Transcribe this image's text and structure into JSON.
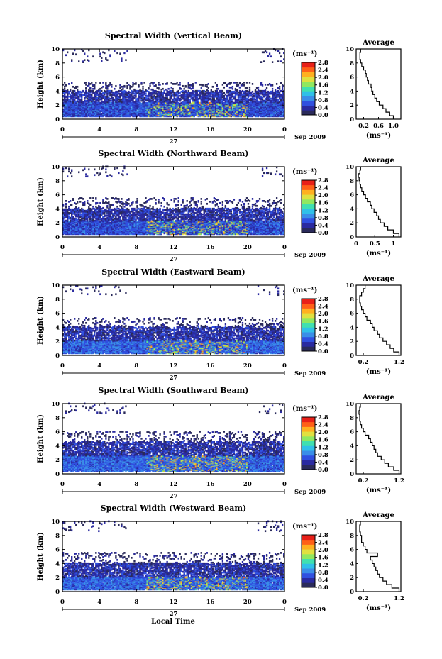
{
  "colorbar": {
    "unit": "(ms⁻¹)",
    "ticks": [
      "2.8",
      "2.4",
      "2.0",
      "1.6",
      "1.2",
      "0.8",
      "0.4",
      "0.0"
    ],
    "range": [
      0.0,
      2.8
    ],
    "colors": [
      "#2a2a5a",
      "#2a2aa0",
      "#3050e0",
      "#3a8ee8",
      "#30c0e8",
      "#40e0b0",
      "#90e860",
      "#e0e040",
      "#ffb020",
      "#ff6018",
      "#e82018"
    ]
  },
  "shared": {
    "y_label": "Height (km)",
    "x_ticks": [
      "0",
      "4",
      "8",
      "12",
      "16",
      "20",
      "0"
    ],
    "x_tick_values": [
      0,
      4,
      8,
      12,
      16,
      20,
      24
    ],
    "y_ticks": [
      "0",
      "2",
      "4",
      "6",
      "8",
      "10"
    ],
    "date_label": "27",
    "month_label": "Sep 2009",
    "x_title": "Local Time",
    "avg_title": "Average",
    "avg_xlabel": "(ms⁻¹)"
  },
  "chart_data": [
    {
      "type": "heatmap",
      "title": "Spectral Width (Vertical Beam)",
      "xlabel": "",
      "ylabel": "Height (km)",
      "xlim": [
        0,
        24
      ],
      "ylim": [
        0,
        10
      ],
      "z_unit": "ms⁻¹",
      "z_range": [
        0.0,
        2.8
      ],
      "layers": [
        {
          "from_km": 0.3,
          "to_km": 2.3,
          "typical_width": 0.6,
          "coverage": "continuous 0-24 h"
        },
        {
          "from_km": 2.3,
          "to_km": 4.0,
          "typical_width": 0.4,
          "coverage": "patchy 0-24 h"
        },
        {
          "from_km": 4.0,
          "to_km": 5.2,
          "typical_width": 0.2,
          "coverage": "sparse"
        },
        {
          "from_km": 8.0,
          "to_km": 10.0,
          "typical_width": 0.2,
          "coverage": "isolated echoes near 0-3 h and 22-24 h"
        }
      ],
      "average_profile": {
        "title": "Average",
        "xlabel": "(ms⁻¹)",
        "ylabel": "",
        "x_ticks": [
          "0.2",
          "0.6",
          "1.0"
        ],
        "x_tick_values": [
          0.2,
          0.6,
          1.0
        ],
        "xlim": [
          0.0,
          1.2
        ],
        "height": [
          0.0,
          0.5,
          1.0,
          1.5,
          2.0,
          2.5,
          3.0,
          3.5,
          4.0,
          4.5,
          5.0,
          5.5,
          6.0,
          6.5,
          7.0,
          7.5,
          8.0,
          8.5,
          9.0,
          9.5
        ],
        "width": [
          1.0,
          0.9,
          0.8,
          0.72,
          0.62,
          0.55,
          0.5,
          0.45,
          0.42,
          0.4,
          0.33,
          0.3,
          0.27,
          0.25,
          0.2,
          0.15,
          0.12,
          0.1,
          0.1,
          0.12
        ]
      }
    },
    {
      "type": "heatmap",
      "title": "Spectral Width (Northward Beam)",
      "xlabel": "",
      "ylabel": "Height (km)",
      "xlim": [
        0,
        24
      ],
      "ylim": [
        0,
        10
      ],
      "z_unit": "ms⁻¹",
      "z_range": [
        0.0,
        2.8
      ],
      "layers": [
        {
          "from_km": 0.3,
          "to_km": 2.2,
          "typical_width": 0.6,
          "coverage": "continuous 0-24 h"
        },
        {
          "from_km": 2.2,
          "to_km": 4.0,
          "typical_width": 0.4,
          "coverage": "patchy 0-24 h"
        },
        {
          "from_km": 4.0,
          "to_km": 5.5,
          "typical_width": 0.2,
          "coverage": "sparse"
        },
        {
          "from_km": 8.5,
          "to_km": 10.0,
          "typical_width": 0.2,
          "coverage": "isolated echoes near 0-7 h and 21-23 h"
        }
      ],
      "average_profile": {
        "title": "Average",
        "xlabel": "(ms⁻¹)",
        "ylabel": "",
        "x_ticks": [
          "0",
          "0.5",
          "1"
        ],
        "x_tick_values": [
          0,
          0.5,
          1.0
        ],
        "xlim": [
          0.0,
          1.2
        ],
        "height": [
          0.0,
          0.5,
          1.0,
          1.5,
          2.0,
          2.5,
          3.0,
          3.5,
          4.0,
          4.5,
          5.0,
          5.5,
          6.0,
          6.5,
          7.0,
          7.5,
          8.0,
          8.5,
          9.0,
          9.5
        ],
        "width": [
          1.15,
          1.0,
          0.85,
          0.75,
          0.65,
          0.6,
          0.55,
          0.48,
          0.42,
          0.38,
          0.3,
          0.25,
          0.2,
          0.15,
          0.12,
          0.1,
          0.08,
          0.06,
          0.1,
          0.12
        ]
      }
    },
    {
      "type": "heatmap",
      "title": "Spectral Width (Eastward Beam)",
      "xlabel": "",
      "ylabel": "Height (km)",
      "xlim": [
        0,
        24
      ],
      "ylim": [
        0,
        10
      ],
      "z_unit": "ms⁻¹",
      "z_range": [
        0.0,
        2.8
      ],
      "layers": [
        {
          "from_km": 0.2,
          "to_km": 2.0,
          "typical_width": 0.7,
          "coverage": "continuous 0-24 h"
        },
        {
          "from_km": 2.0,
          "to_km": 4.0,
          "typical_width": 0.4,
          "coverage": "patchy 0-24 h"
        },
        {
          "from_km": 4.0,
          "to_km": 5.3,
          "typical_width": 0.2,
          "coverage": "sparse"
        },
        {
          "from_km": 8.5,
          "to_km": 10.0,
          "typical_width": 0.2,
          "coverage": "isolated echoes near 0-7 h"
        }
      ],
      "average_profile": {
        "title": "Average",
        "xlabel": "(ms⁻¹)",
        "ylabel": "",
        "x_ticks": [
          "0.2",
          "1.2"
        ],
        "x_tick_values": [
          0.2,
          1.2
        ],
        "xlim": [
          0.0,
          1.25
        ],
        "height": [
          0.0,
          0.5,
          1.0,
          1.5,
          2.0,
          2.5,
          3.0,
          3.5,
          4.0,
          4.5,
          5.0,
          5.5,
          6.0,
          6.5,
          7.0,
          7.5,
          8.0,
          8.5,
          9.0,
          9.5
        ],
        "width": [
          1.2,
          1.05,
          0.95,
          0.85,
          0.75,
          0.65,
          0.6,
          0.5,
          0.45,
          0.4,
          0.3,
          0.25,
          0.2,
          0.15,
          0.12,
          0.1,
          0.1,
          0.15,
          0.2,
          0.25
        ]
      }
    },
    {
      "type": "heatmap",
      "title": "Spectral Width (Southward Beam)",
      "xlabel": "",
      "ylabel": "Height (km)",
      "xlim": [
        0,
        24
      ],
      "ylim": [
        0,
        10
      ],
      "z_unit": "ms⁻¹",
      "z_range": [
        0.0,
        2.8
      ],
      "layers": [
        {
          "from_km": 0.3,
          "to_km": 2.5,
          "typical_width": 0.7,
          "coverage": "continuous 0-24 h"
        },
        {
          "from_km": 2.5,
          "to_km": 4.5,
          "typical_width": 0.4,
          "coverage": "patchy 0-24 h"
        },
        {
          "from_km": 4.5,
          "to_km": 6.0,
          "typical_width": 0.2,
          "coverage": "sparse"
        },
        {
          "from_km": 8.5,
          "to_km": 10.0,
          "typical_width": 0.2,
          "coverage": "isolated echoes near 0-7 h and 22-24 h"
        }
      ],
      "average_profile": {
        "title": "Average",
        "xlabel": "(ms⁻¹)",
        "ylabel": "",
        "x_ticks": [
          "0.2",
          "1.2"
        ],
        "x_tick_values": [
          0.2,
          1.2
        ],
        "xlim": [
          0.0,
          1.25
        ],
        "height": [
          0.0,
          0.5,
          1.0,
          1.5,
          2.0,
          2.5,
          3.0,
          3.5,
          4.0,
          4.5,
          5.0,
          5.5,
          6.0,
          6.5,
          7.0,
          7.5,
          8.0,
          8.5,
          9.0,
          9.5
        ],
        "width": [
          1.2,
          1.05,
          0.9,
          0.8,
          0.7,
          0.6,
          0.55,
          0.5,
          0.45,
          0.4,
          0.35,
          0.25,
          0.2,
          0.15,
          0.12,
          0.1,
          0.1,
          0.08,
          0.1,
          0.12
        ]
      }
    },
    {
      "type": "heatmap",
      "title": "Spectral Width (Westward Beam)",
      "xlabel": "Local Time",
      "ylabel": "Height (km)",
      "xlim": [
        0,
        24
      ],
      "ylim": [
        0,
        10
      ],
      "z_unit": "ms⁻¹",
      "z_range": [
        0.0,
        2.8
      ],
      "layers": [
        {
          "from_km": 0.2,
          "to_km": 2.0,
          "typical_width": 0.7,
          "coverage": "continuous 0-24 h"
        },
        {
          "from_km": 2.0,
          "to_km": 4.0,
          "typical_width": 0.4,
          "coverage": "patchy 0-24 h"
        },
        {
          "from_km": 4.0,
          "to_km": 5.5,
          "typical_width": 0.2,
          "coverage": "sparse"
        },
        {
          "from_km": 8.5,
          "to_km": 10.0,
          "typical_width": 0.2,
          "coverage": "isolated echoes near 0-2 h"
        }
      ],
      "average_profile": {
        "title": "Average",
        "xlabel": "(ms⁻¹)",
        "ylabel": "",
        "x_ticks": [
          "0.2",
          "1.2"
        ],
        "x_tick_values": [
          0.2,
          1.2
        ],
        "xlim": [
          0.0,
          1.25
        ],
        "height": [
          0.0,
          0.5,
          1.0,
          1.5,
          2.0,
          2.5,
          3.0,
          3.5,
          4.0,
          4.5,
          5.0,
          5.5,
          6.0,
          6.5,
          7.0,
          7.5,
          8.0,
          8.5,
          9.0,
          9.5
        ],
        "width": [
          1.2,
          1.0,
          0.85,
          0.75,
          0.65,
          0.6,
          0.55,
          0.5,
          0.45,
          0.4,
          0.6,
          0.3,
          0.25,
          0.2,
          0.15,
          0.15,
          0.12,
          0.1,
          0.1,
          0.12
        ]
      }
    }
  ]
}
